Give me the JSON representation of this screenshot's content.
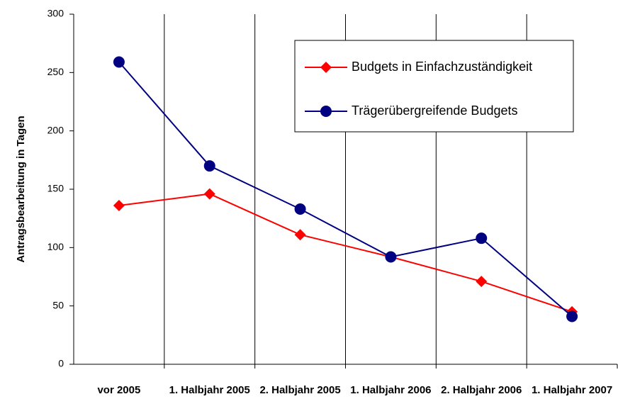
{
  "chart_data": {
    "type": "line",
    "y_axis_label": "Antragsbearbeitung in Tagen",
    "categories": [
      "vor 2005",
      "1. Halbjahr 2005",
      "2. Halbjahr 2005",
      "1. Halbjahr 2006",
      "2. Halbjahr 2006",
      "1. Halbjahr 2007"
    ],
    "series": [
      {
        "name": "Budgets in Einfachzuständigkeit",
        "color": "#ff0000",
        "marker": "diamond",
        "values": [
          136,
          146,
          111,
          92,
          71,
          45
        ]
      },
      {
        "name": "Trägerübergreifende Budgets",
        "color": "#000080",
        "marker": "circle",
        "values": [
          259,
          170,
          133,
          92,
          108,
          41
        ]
      }
    ],
    "ylim": [
      0,
      300
    ],
    "yticks": [
      0,
      50,
      100,
      150,
      200,
      250,
      300
    ],
    "legend": "upper right"
  }
}
